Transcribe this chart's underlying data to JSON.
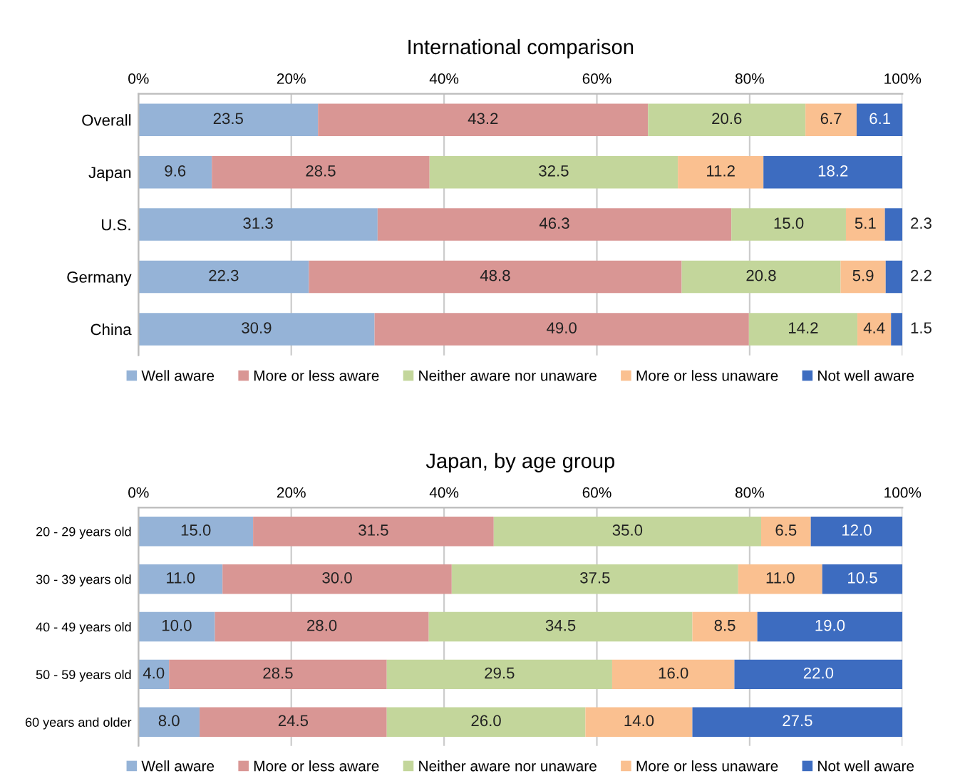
{
  "chart_data": [
    {
      "type": "bar",
      "orientation": "horizontal",
      "stacked": true,
      "title": "International comparison",
      "categories": [
        "Overall",
        "Japan",
        "U.S.",
        "Germany",
        "China"
      ],
      "series": [
        {
          "name": "Well aware",
          "color": "#95b3d7",
          "values": [
            23.5,
            9.6,
            31.3,
            22.3,
            30.9
          ],
          "value_labels": [
            "23.5",
            "9.6",
            "31.3",
            "22.3",
            "30.9"
          ]
        },
        {
          "name": "More or less aware",
          "color": "#d99694",
          "values": [
            43.2,
            28.5,
            46.3,
            48.8,
            49.0
          ],
          "value_labels": [
            "43.2",
            "28.5",
            "46.3",
            "48.8",
            "49.0"
          ]
        },
        {
          "name": "Neither aware nor unaware",
          "color": "#c3d69b",
          "values": [
            20.6,
            32.5,
            15.0,
            20.8,
            14.2
          ],
          "value_labels": [
            "20.6",
            "32.5",
            "15.0",
            "20.8",
            "14.2"
          ]
        },
        {
          "name": "More or less unaware",
          "color": "#fac090",
          "values": [
            6.7,
            11.2,
            5.1,
            5.9,
            4.4
          ],
          "value_labels": [
            "6.7",
            "11.2",
            "5.1",
            "5.9",
            "4.4"
          ]
        },
        {
          "name": "Not well aware",
          "color": "#3d6cc0",
          "values": [
            6.1,
            18.2,
            2.3,
            2.2,
            1.5
          ],
          "value_labels": [
            "6.1",
            "18.2",
            "2.3",
            "2.2",
            "1.5"
          ]
        }
      ],
      "xlim": [
        0,
        100
      ],
      "xticks": [
        {
          "value": 0,
          "label": "0%"
        },
        {
          "value": 20,
          "label": "20%"
        },
        {
          "value": 40,
          "label": "40%"
        },
        {
          "value": 60,
          "label": "60%"
        },
        {
          "value": 80,
          "label": "80%"
        },
        {
          "value": 100,
          "label": "100%"
        }
      ],
      "grid": "x",
      "legend": "bottom"
    },
    {
      "type": "bar",
      "orientation": "horizontal",
      "stacked": true,
      "title": "Japan, by age group",
      "categories": [
        "20 - 29 years old",
        "30 - 39 years old",
        "40 - 49 years old",
        "50 - 59 years old",
        "60 years and older"
      ],
      "series": [
        {
          "name": "Well aware",
          "color": "#95b3d7",
          "values": [
            15.0,
            11.0,
            10.0,
            4.0,
            8.0
          ],
          "value_labels": [
            "15.0",
            "11.0",
            "10.0",
            "4.0",
            "8.0"
          ]
        },
        {
          "name": "More or less aware",
          "color": "#d99694",
          "values": [
            31.5,
            30.0,
            28.0,
            28.5,
            24.5
          ],
          "value_labels": [
            "31.5",
            "30.0",
            "28.0",
            "28.5",
            "24.5"
          ]
        },
        {
          "name": "Neither aware nor unaware",
          "color": "#c3d69b",
          "values": [
            35.0,
            37.5,
            34.5,
            29.5,
            26.0
          ],
          "value_labels": [
            "35.0",
            "37.5",
            "34.5",
            "29.5",
            "26.0"
          ]
        },
        {
          "name": "More or less unaware",
          "color": "#fac090",
          "values": [
            6.5,
            11.0,
            8.5,
            16.0,
            14.0
          ],
          "value_labels": [
            "6.5",
            "11.0",
            "8.5",
            "16.0",
            "14.0"
          ]
        },
        {
          "name": "Not well aware",
          "color": "#3d6cc0",
          "values": [
            12.0,
            10.5,
            19.0,
            22.0,
            27.5
          ],
          "value_labels": [
            "12.0",
            "10.5",
            "19.0",
            "22.0",
            "27.5"
          ]
        }
      ],
      "xlim": [
        0,
        100
      ],
      "xticks": [
        {
          "value": 0,
          "label": "0%"
        },
        {
          "value": 20,
          "label": "20%"
        },
        {
          "value": 40,
          "label": "40%"
        },
        {
          "value": 60,
          "label": "60%"
        },
        {
          "value": 80,
          "label": "80%"
        },
        {
          "value": 100,
          "label": "100%"
        }
      ],
      "grid": "x",
      "legend": "bottom"
    }
  ]
}
